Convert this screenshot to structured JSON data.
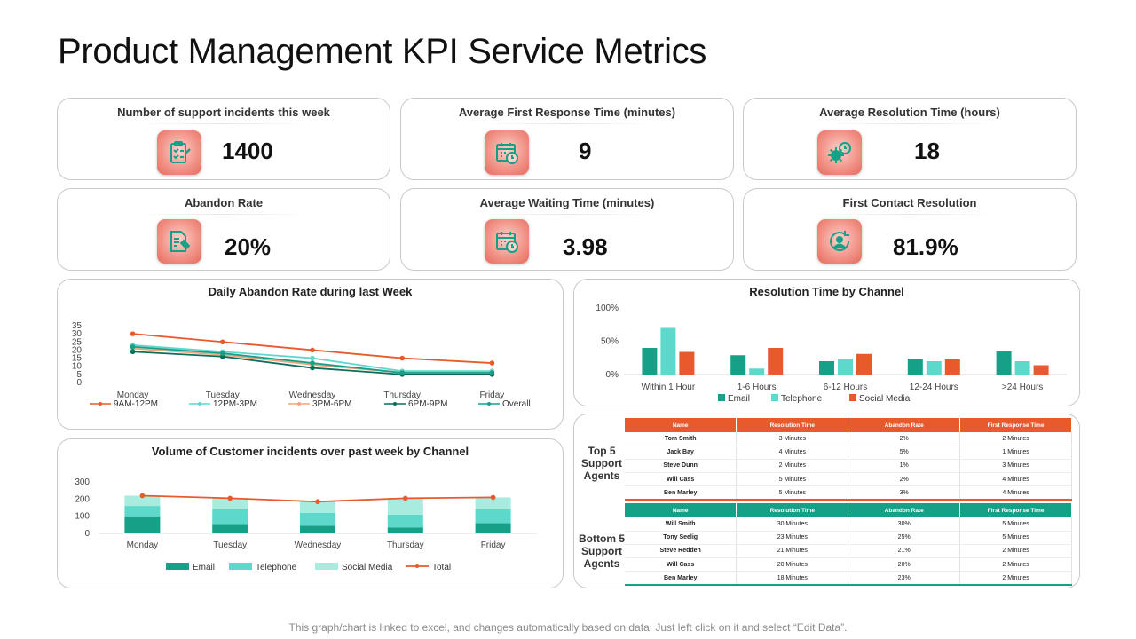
{
  "page": {
    "title": "Product Management KPI Service Metrics",
    "footer": "This graph/chart is linked to excel, and changes automatically based on data. Just left click on it and select “Edit Data”."
  },
  "colors": {
    "teal": "#17a088",
    "turquoise": "#5fd8cc",
    "mint": "#a8ecdf",
    "orange": "#e85a2c",
    "card_border": "#c9c9c9"
  },
  "kpis": [
    {
      "title": "Number of support  incidents this week",
      "value": "1400",
      "icon": "clipboard-checklist-icon"
    },
    {
      "title": "Average First Response  Time (minutes)",
      "value": "9",
      "icon": "calendar-clock-icon"
    },
    {
      "title": "Average Resolution Time (hours)",
      "value": "18",
      "icon": "gear-clock-icon"
    },
    {
      "title": "Abandon Rate",
      "value": "20%",
      "icon": "document-pen-icon"
    },
    {
      "title": "Average Waiting Time (minutes)",
      "value": "3.98",
      "icon": "calendar-clock-icon"
    },
    {
      "title": "First Contact Resolution",
      "value": "81.9%",
      "icon": "person-cycle-icon"
    }
  ],
  "chart_data": [
    {
      "id": "abandon",
      "type": "line",
      "title": "Daily Abandon Rate during last Week",
      "categories": [
        "Monday",
        "Tuesday",
        "Wednesday",
        "Thursday",
        "Friday"
      ],
      "yticks": [
        "35",
        "30",
        "25",
        "20",
        "15",
        "10",
        "5",
        "0"
      ],
      "ylim": [
        0,
        35
      ],
      "series": [
        {
          "name": "9AM-12PM",
          "color": "#e85a2c",
          "values": [
            30,
            25,
            20,
            15,
            12
          ]
        },
        {
          "name": "12PM-3PM",
          "color": "#5fd8cc",
          "values": [
            23,
            19,
            15,
            7,
            7
          ]
        },
        {
          "name": "3PM-6PM",
          "color": "#f0a57e",
          "values": [
            21,
            17,
            11,
            6,
            6
          ]
        },
        {
          "name": "6PM-9PM",
          "color": "#0f6b5a",
          "values": [
            19,
            16,
            9,
            5,
            5
          ]
        },
        {
          "name": "Overall",
          "color": "#17a088",
          "values": [
            22,
            18,
            12,
            6,
            6
          ]
        }
      ]
    },
    {
      "id": "resolution",
      "type": "bar",
      "title": "Resolution Time by Channel",
      "categories": [
        "Within 1 Hour",
        "1-6 Hours",
        "6-12 Hours",
        "12-24 Hours",
        ">24 Hours"
      ],
      "yticks": [
        "100%",
        "50%",
        "0%"
      ],
      "ylim": [
        0,
        100
      ],
      "series": [
        {
          "name": "Email",
          "color": "#17a088",
          "values": [
            40,
            29,
            20,
            24,
            35
          ]
        },
        {
          "name": "Telephone",
          "color": "#5fd8cc",
          "values": [
            70,
            9,
            24,
            20,
            20
          ]
        },
        {
          "name": "Social Media",
          "color": "#e85a2c",
          "values": [
            34,
            40,
            31,
            23,
            14
          ]
        }
      ]
    },
    {
      "id": "volume",
      "type": "bar",
      "stacked": true,
      "title": "Volume of Customer  incidents over past week by Channel",
      "categories": [
        "Monday",
        "Tuesday",
        "Wednesday",
        "Thursday",
        "Friday"
      ],
      "yticks": [
        "300",
        "200",
        "100",
        "0"
      ],
      "ylim": [
        0,
        300
      ],
      "series": [
        {
          "name": "Email",
          "color": "#17a088",
          "values": [
            100,
            55,
            45,
            35,
            60
          ]
        },
        {
          "name": "Telephone",
          "color": "#5fd8cc",
          "values": [
            60,
            85,
            75,
            75,
            80
          ]
        },
        {
          "name": "Social Media",
          "color": "#a8ecdf",
          "values": [
            60,
            65,
            65,
            95,
            70
          ]
        }
      ],
      "line": {
        "name": "Total",
        "color": "#e85a2c",
        "values": [
          220,
          205,
          185,
          205,
          210
        ]
      }
    }
  ],
  "agents": {
    "columns": [
      "Name",
      "Resolution Time",
      "Abandon Rate",
      "First Response Time"
    ],
    "top_label": "Top 5 Support Agents",
    "bottom_label": "Bottom 5 Support Agents",
    "top": [
      [
        "Tom  Smith",
        "3 Minutes",
        "2%",
        "2 Minutes"
      ],
      [
        "Jack Bay",
        "4 Minutes",
        "5%",
        "1 Minutes"
      ],
      [
        "Steve Dunn",
        "2 Minutes",
        "1%",
        "3 Minutes"
      ],
      [
        "Will Cass",
        "5 Minutes",
        "2%",
        "4 Minutes"
      ],
      [
        "Ben Marley",
        "5 Minutes",
        "3%",
        "4 Minutes"
      ]
    ],
    "bottom": [
      [
        "Will  Smith",
        "30 Minutes",
        "30%",
        "5 Minutes"
      ],
      [
        "Tony  Seelig",
        "23 Minutes",
        "25%",
        "5 Minutes"
      ],
      [
        "Steve  Redden",
        "21 Minutes",
        "21%",
        "2 Minutes"
      ],
      [
        "Will Cass",
        "20 Minutes",
        "20%",
        "2 Minutes"
      ],
      [
        "Ben Marley",
        "18 Minutes",
        "23%",
        "2 Minutes"
      ]
    ]
  }
}
